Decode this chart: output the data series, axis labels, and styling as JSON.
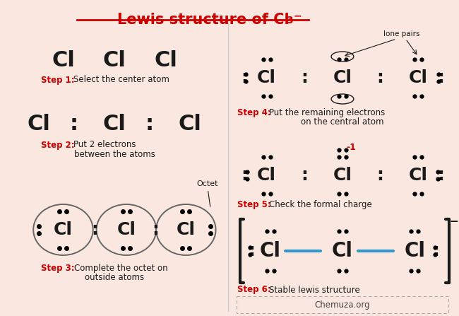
{
  "bg_color": "#fae8e0",
  "red": "#cc0000",
  "black": "#1a1a1a",
  "cyan": "#3399cc",
  "gray": "#888888",
  "chemuza": "Chemuza.org",
  "title_main": "Lewis structure of Cl",
  "title_sub": "3",
  "title_sup": "−"
}
